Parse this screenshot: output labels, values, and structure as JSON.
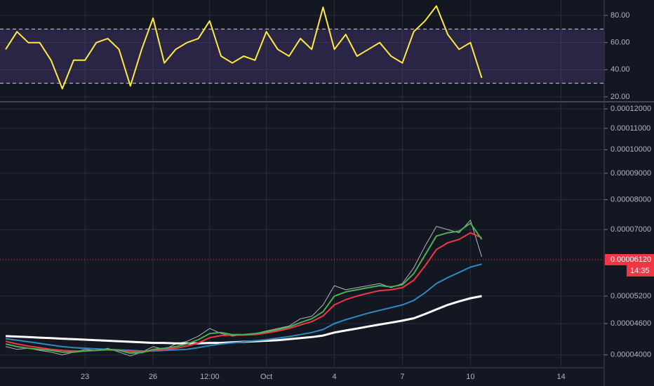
{
  "chart_data": [
    {
      "type": "line",
      "x": [
        19.5,
        20,
        20.5,
        21,
        21.5,
        22,
        22.5,
        23,
        23.5,
        24,
        24.5,
        25,
        25.5,
        26,
        26.5,
        27,
        27.5,
        28,
        28.5,
        29,
        29.5,
        30,
        30.5,
        31,
        31.5,
        32,
        32.5,
        33,
        33.5,
        34,
        34.5,
        35,
        35.5,
        36,
        36.5,
        37,
        37.5,
        38,
        38.5,
        39,
        39.5,
        40,
        40.5
      ],
      "series": [
        {
          "color": "#ffeb3b",
          "values": [
            55,
            68,
            60,
            60,
            47,
            26,
            47,
            47,
            60,
            63,
            55,
            28,
            55,
            78,
            45,
            55,
            60,
            63,
            76,
            50,
            45,
            50,
            47,
            68,
            55,
            50,
            63,
            55,
            86,
            55,
            66,
            50,
            55,
            60,
            50,
            45,
            68,
            76,
            87,
            66,
            55,
            60,
            34
          ]
        }
      ],
      "levels": [
        30,
        70
      ],
      "band_color": "#7e57c2",
      "xlim": [
        19.25,
        45.87
      ],
      "ylim": [
        17.4,
        91.4
      ],
      "yticks": [
        {
          "value": 80,
          "label": "80.00"
        },
        {
          "value": 60,
          "label": "60.00"
        },
        {
          "value": 40,
          "label": "40.00"
        },
        {
          "value": 20,
          "label": "20.00"
        }
      ],
      "grid": true
    },
    {
      "type": "line",
      "log_scale": true,
      "x": [
        19.5,
        20,
        20.5,
        21,
        21.5,
        22,
        22.5,
        23,
        23.5,
        24,
        24.5,
        25,
        25.5,
        26,
        26.5,
        27,
        27.5,
        28,
        28.5,
        29,
        29.5,
        30,
        30.5,
        31,
        31.5,
        32,
        32.5,
        33,
        33.5,
        34,
        34.5,
        35,
        35.5,
        36,
        36.5,
        37,
        37.5,
        38,
        38.5,
        39,
        39.5,
        40,
        40.5
      ],
      "series": [
        {
          "color": "#b2b5be",
          "values": [
            4.15e-05,
            4.1e-05,
            4.12e-05,
            4.08e-05,
            4.05e-05,
            4e-05,
            4.05e-05,
            4.1e-05,
            4.08e-05,
            4.12e-05,
            4.05e-05,
            3.98e-05,
            4.05e-05,
            4.15e-05,
            4.1e-05,
            4.2e-05,
            4.25e-05,
            4.35e-05,
            4.5e-05,
            4.4e-05,
            4.35e-05,
            4.38e-05,
            4.4e-05,
            4.45e-05,
            4.5e-05,
            4.55e-05,
            4.7e-05,
            4.75e-05,
            5e-05,
            5.45e-05,
            5.35e-05,
            5.4e-05,
            5.45e-05,
            5.5e-05,
            5.4e-05,
            5.5e-05,
            5.9e-05,
            6.5e-05,
            7.1e-05,
            7e-05,
            6.9e-05,
            7.3e-05,
            6.2e-05
          ]
        },
        {
          "color": "#ffffff",
          "values": [
            4.35e-05,
            4.34e-05,
            4.33e-05,
            4.32e-05,
            4.31e-05,
            4.3e-05,
            4.29e-05,
            4.28e-05,
            4.27e-05,
            4.26e-05,
            4.25e-05,
            4.24e-05,
            4.23e-05,
            4.22e-05,
            4.22e-05,
            4.21e-05,
            4.21e-05,
            4.21e-05,
            4.22e-05,
            4.22e-05,
            4.23e-05,
            4.24e-05,
            4.25e-05,
            4.26e-05,
            4.27e-05,
            4.29e-05,
            4.31e-05,
            4.33e-05,
            4.36e-05,
            4.42e-05,
            4.46e-05,
            4.5e-05,
            4.54e-05,
            4.58e-05,
            4.62e-05,
            4.66e-05,
            4.71e-05,
            4.8e-05,
            4.9e-05,
            5e-05,
            5.08e-05,
            5.15e-05,
            5.2e-05
          ]
        },
        {
          "color": "#2e8bc0",
          "values": [
            4.3e-05,
            4.27e-05,
            4.24e-05,
            4.21e-05,
            4.18e-05,
            4.15e-05,
            4.13e-05,
            4.12e-05,
            4.11e-05,
            4.1e-05,
            4.09e-05,
            4.08e-05,
            4.07e-05,
            4.07e-05,
            4.08e-05,
            4.09e-05,
            4.1e-05,
            4.13e-05,
            4.17e-05,
            4.2e-05,
            4.22e-05,
            4.24e-05,
            4.26e-05,
            4.28e-05,
            4.31e-05,
            4.34e-05,
            4.38e-05,
            4.42e-05,
            4.48e-05,
            4.6e-05,
            4.68e-05,
            4.75e-05,
            4.82e-05,
            4.88e-05,
            4.94e-05,
            5e-05,
            5.1e-05,
            5.28e-05,
            5.5e-05,
            5.65e-05,
            5.78e-05,
            5.92e-05,
            6e-05
          ]
        },
        {
          "color": "#f23645",
          "values": [
            4.25e-05,
            4.2e-05,
            4.16e-05,
            4.13e-05,
            4.1e-05,
            4.08e-05,
            4.07e-05,
            4.07e-05,
            4.08e-05,
            4.09e-05,
            4.08e-05,
            4.06e-05,
            4.05e-05,
            4.08e-05,
            4.1e-05,
            4.12e-05,
            4.16e-05,
            4.22e-05,
            4.32e-05,
            4.36e-05,
            4.37e-05,
            4.37e-05,
            4.38e-05,
            4.41e-05,
            4.45e-05,
            4.5e-05,
            4.57e-05,
            4.64e-05,
            4.76e-05,
            5e-05,
            5.12e-05,
            5.2e-05,
            5.27e-05,
            5.33e-05,
            5.35e-05,
            5.4e-05,
            5.58e-05,
            5.95e-05,
            6.4e-05,
            6.6e-05,
            6.7e-05,
            6.9e-05,
            6.75e-05
          ]
        },
        {
          "color": "#4caf50",
          "values": [
            4.2e-05,
            4.15e-05,
            4.12e-05,
            4.1e-05,
            4.08e-05,
            4.05e-05,
            4.05e-05,
            4.07e-05,
            4.08e-05,
            4.1e-05,
            4.08e-05,
            4.03e-05,
            4.04e-05,
            4.1e-05,
            4.12e-05,
            4.15e-05,
            4.2e-05,
            4.28e-05,
            4.4e-05,
            4.42e-05,
            4.38e-05,
            4.38e-05,
            4.4e-05,
            4.43e-05,
            4.48e-05,
            4.53e-05,
            4.62e-05,
            4.7e-05,
            4.85e-05,
            5.2e-05,
            5.3e-05,
            5.35e-05,
            5.4e-05,
            5.45e-05,
            5.42e-05,
            5.47e-05,
            5.75e-05,
            6.25e-05,
            6.8e-05,
            6.9e-05,
            6.95e-05,
            7.2e-05,
            6.7e-05
          ]
        }
      ],
      "xlim": [
        19.25,
        45.87
      ],
      "ylim": [
        3.8e-05,
        0.0001231
      ],
      "xticks": [
        23,
        26,
        {
          "value": 28.5,
          "label": "12:00"
        },
        {
          "value": 31,
          "label": "Oct"
        },
        {
          "value": 34,
          "label": "4"
        },
        {
          "value": 37,
          "label": "7"
        },
        {
          "value": 40,
          "label": "10"
        },
        {
          "value": 44,
          "label": "14"
        }
      ],
      "yticks": [
        {
          "value": 0.00012,
          "label": "0.00012000"
        },
        {
          "value": 0.00011,
          "label": "0.00011000"
        },
        {
          "value": 0.0001,
          "label": "0.00010000"
        },
        {
          "value": 9e-05,
          "label": "0.00009000"
        },
        {
          "value": 8e-05,
          "label": "0.00008000"
        },
        {
          "value": 7e-05,
          "label": "0.00007000"
        },
        {
          "value": 5.2e-05,
          "label": "0.00005200"
        },
        {
          "value": 4.6e-05,
          "label": "0.00004600"
        },
        {
          "value": 4e-05,
          "label": "0.00004000"
        }
      ],
      "last_price": {
        "value": 6.12e-05,
        "label": "0.00006120"
      },
      "last_price_color": "#f23645",
      "countdown": "14:35",
      "grid": true
    }
  ]
}
